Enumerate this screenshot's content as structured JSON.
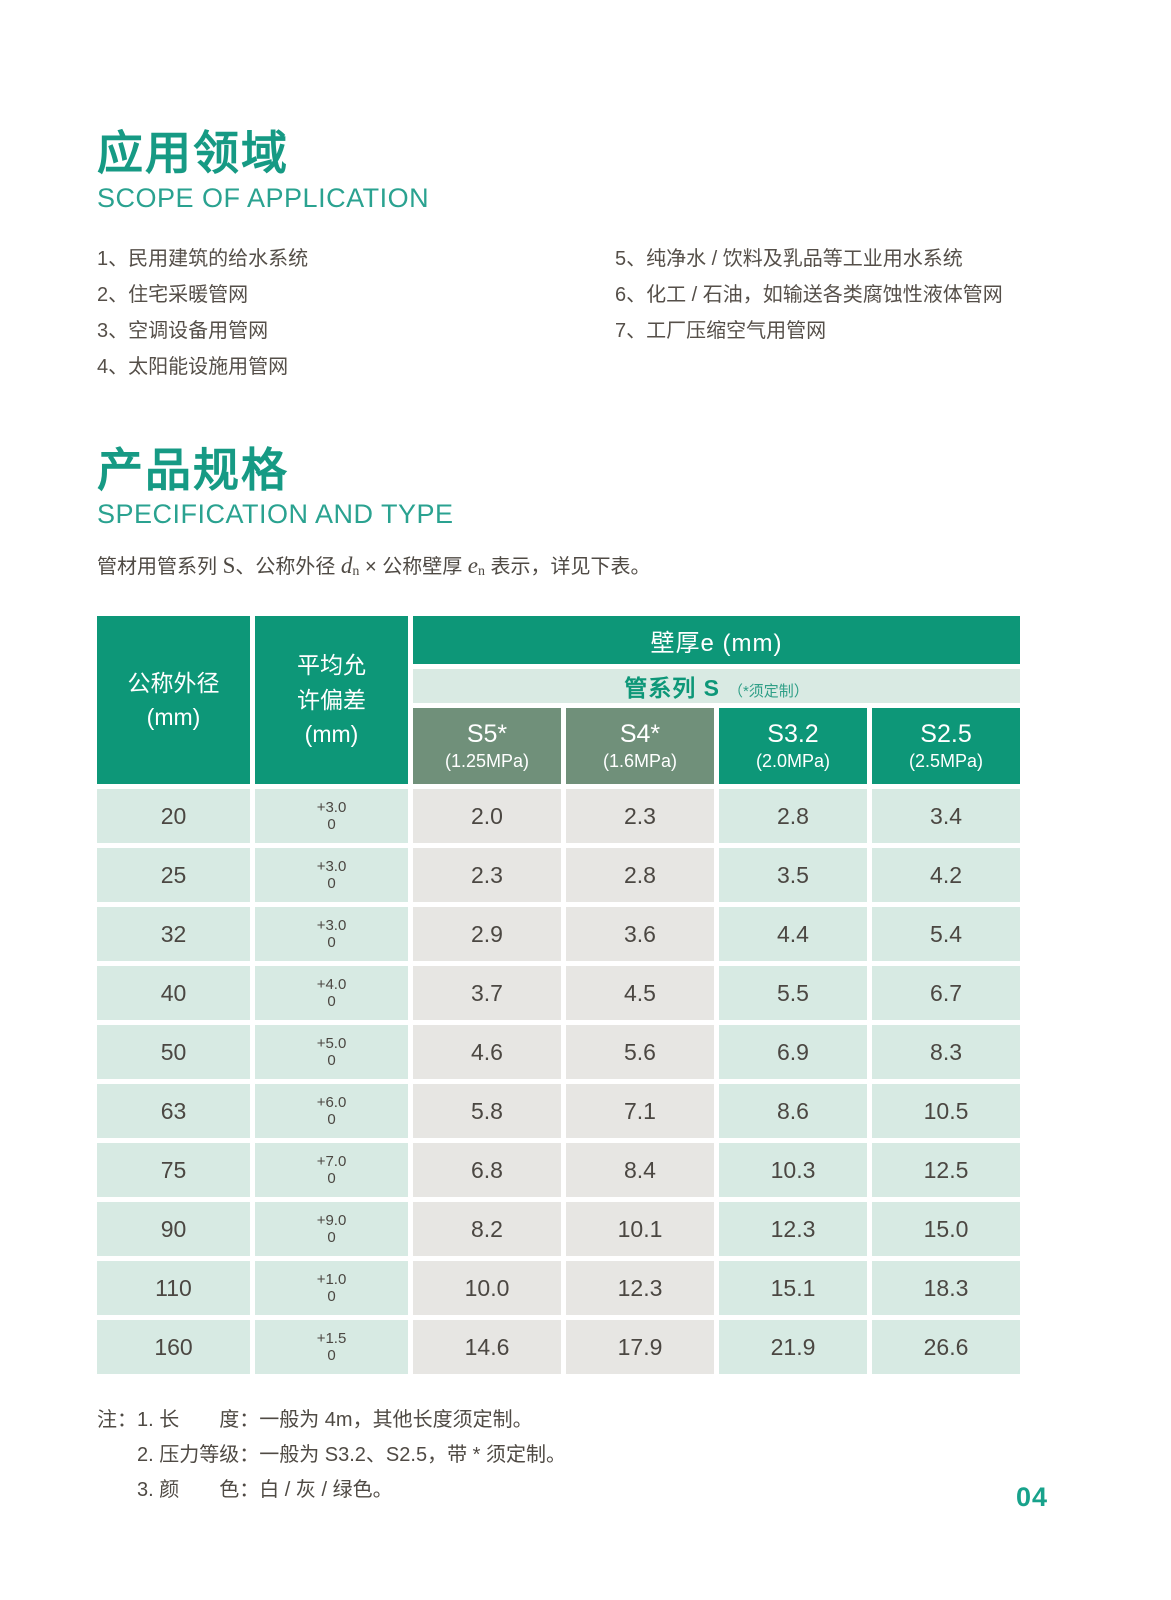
{
  "page": {
    "number": "04"
  },
  "colors": {
    "accent_teal": "#169a84",
    "table_teal": "#0d9778",
    "sage_green": "#70907a",
    "mint_bg": "#d7eae3",
    "gray_bg": "#e7e6e3"
  },
  "scope": {
    "title_zh": "应用领域",
    "title_en": "SCOPE OF APPLICATION",
    "items_left": [
      "1、民用建筑的给水系统",
      "2、住宅采暖管网",
      "3、空调设备用管网",
      "4、太阳能设施用管网"
    ],
    "items_right": [
      "5、纯净水 / 饮料及乳品等工业用水系统",
      "6、化工 / 石油，如输送各类腐蚀性液体管网",
      "7、工厂压缩空气用管网"
    ]
  },
  "spec": {
    "title_zh": "产品规格",
    "title_en": "SPECIFICATION AND TYPE",
    "intro": {
      "t1": "管材用管系列 ",
      "s": "S",
      "t2": "、公称外径 ",
      "d": "d",
      "dsub": "n",
      "t3": " × 公称壁厚 ",
      "e": "e",
      "esub": "n",
      "t4": " 表示，详见下表。"
    }
  },
  "table": {
    "header": {
      "col1": [
        "公称外径",
        "(mm)"
      ],
      "col2": [
        "平均允",
        "许偏差",
        "(mm)"
      ],
      "group_title": "壁厚e (mm)",
      "series_label": "管系列 S",
      "series_note": "（*须定制）",
      "sub": [
        {
          "name": "S5*",
          "pressure": "(1.25MPa)"
        },
        {
          "name": "S4*",
          "pressure": "(1.6MPa)"
        },
        {
          "name": "S3.2",
          "pressure": "(2.0MPa)"
        },
        {
          "name": "S2.5",
          "pressure": "(2.5MPa)"
        }
      ]
    },
    "rows": [
      {
        "dn": "20",
        "tol": [
          "+3.0",
          "0"
        ],
        "values": [
          "2.0",
          "2.3",
          "2.8",
          "3.4"
        ]
      },
      {
        "dn": "25",
        "tol": [
          "+3.0",
          "0"
        ],
        "values": [
          "2.3",
          "2.8",
          "3.5",
          "4.2"
        ]
      },
      {
        "dn": "32",
        "tol": [
          "+3.0",
          "0"
        ],
        "values": [
          "2.9",
          "3.6",
          "4.4",
          "5.4"
        ]
      },
      {
        "dn": "40",
        "tol": [
          "+4.0",
          "0"
        ],
        "values": [
          "3.7",
          "4.5",
          "5.5",
          "6.7"
        ]
      },
      {
        "dn": "50",
        "tol": [
          "+5.0",
          "0"
        ],
        "values": [
          "4.6",
          "5.6",
          "6.9",
          "8.3"
        ]
      },
      {
        "dn": "63",
        "tol": [
          "+6.0",
          "0"
        ],
        "values": [
          "5.8",
          "7.1",
          "8.6",
          "10.5"
        ]
      },
      {
        "dn": "75",
        "tol": [
          "+7.0",
          "0"
        ],
        "values": [
          "6.8",
          "8.4",
          "10.3",
          "12.5"
        ]
      },
      {
        "dn": "90",
        "tol": [
          "+9.0",
          "0"
        ],
        "values": [
          "8.2",
          "10.1",
          "12.3",
          "15.0"
        ]
      },
      {
        "dn": "110",
        "tol": [
          "+1.0",
          "0"
        ],
        "values": [
          "10.0",
          "12.3",
          "15.1",
          "18.3"
        ]
      },
      {
        "dn": "160",
        "tol": [
          "+1.5",
          "0"
        ],
        "values": [
          "14.6",
          "17.9",
          "21.9",
          "26.6"
        ]
      }
    ]
  },
  "notes": {
    "label": "注：",
    "items": [
      "1. 长　　度：一般为 4m，其他长度须定制。",
      "2. 压力等级：一般为 S3.2、S2.5，带 * 须定制。",
      "3. 颜　　色：白 / 灰 / 绿色。"
    ]
  }
}
